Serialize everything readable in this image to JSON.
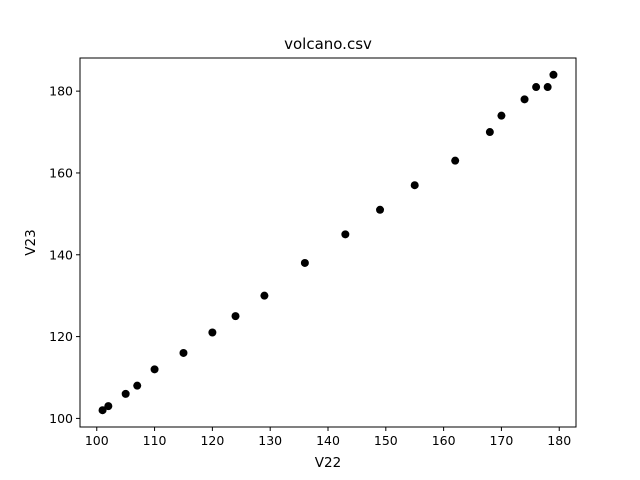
{
  "chart_data": {
    "type": "scatter",
    "title": "volcano.csv",
    "xlabel": "V22",
    "ylabel": "V23",
    "xlim": [
      97.1,
      182.9
    ],
    "ylim": [
      97.9,
      188.1
    ],
    "xticks": [
      100,
      110,
      120,
      130,
      140,
      150,
      160,
      170,
      180
    ],
    "yticks": [
      100,
      120,
      140,
      160,
      180
    ],
    "grid": false,
    "marker_color": "#000000",
    "series": [
      {
        "x": [
          101,
          102,
          105,
          107,
          110,
          115,
          120,
          124,
          129,
          136,
          143,
          149,
          155,
          162,
          168,
          170,
          174,
          176,
          178,
          179
        ],
        "y": [
          102,
          103,
          106,
          108,
          112,
          116,
          121,
          125,
          130,
          138,
          145,
          151,
          157,
          163,
          170,
          174,
          178,
          181,
          181,
          184
        ]
      }
    ]
  }
}
